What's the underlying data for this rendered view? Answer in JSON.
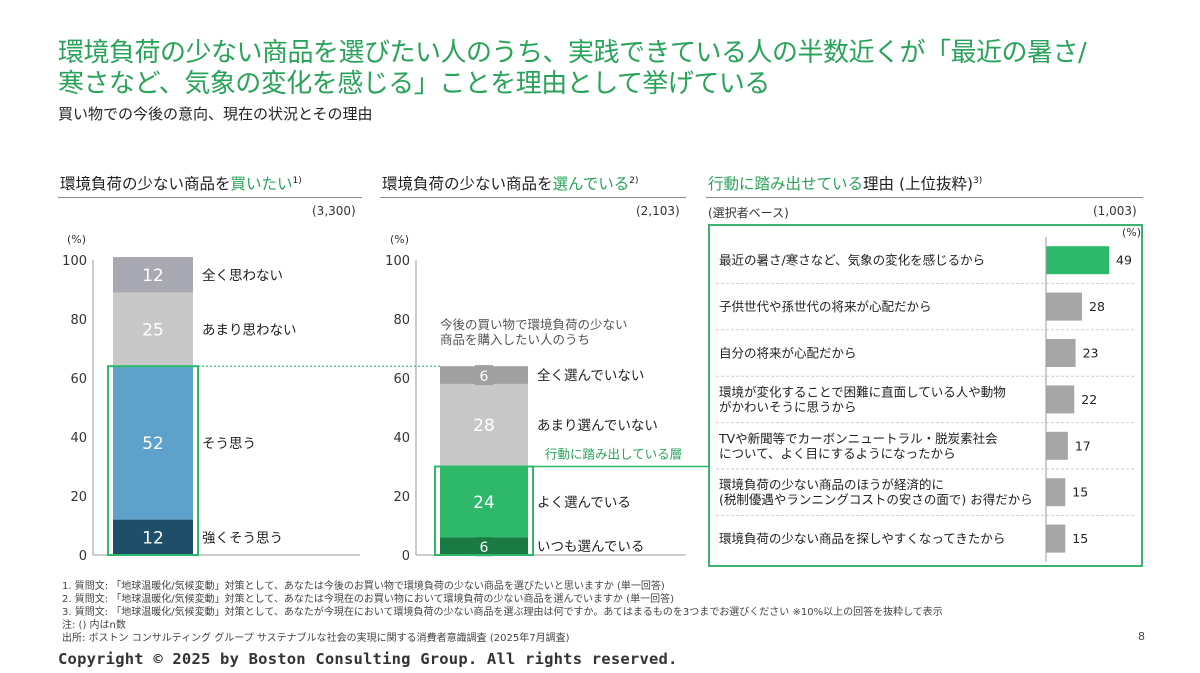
{
  "title_line1": "環境負荷の少ない商品を選びたい人のうち、実践できている人の半数近くが「最近の暑さ/",
  "title_line2": "寒さなど、気象の変化を感じる」ことを理由として挙げている",
  "subtitle": "買い物での今後の意向、現在の状況とその理由",
  "panels": {
    "left": {
      "title_pre": "環境負荷の少ない商品を",
      "title_hl": "買いたい",
      "title_sup": "1)",
      "base": "(3,300)"
    },
    "middle": {
      "title_pre": "環境負荷の少ない商品を",
      "title_hl": "選んでいる",
      "title_sup": "2)",
      "base": "(2,103)"
    },
    "right": {
      "title_hl": "行動に踏み出せている",
      "title_post": "理由 (上位抜粋)",
      "title_sup": "3)",
      "base_label": "(選択者ベース)",
      "base": "(1,003)"
    }
  },
  "annotations": {
    "middle_note": [
      "今後の買い物で環境負荷の少ない",
      "商品を購入したい人のうち"
    ],
    "action_layer": "行動に踏み出している層",
    "percent_unit": "(%)"
  },
  "chart_data": [
    {
      "type": "bar",
      "stacked": true,
      "ylabel": "(%)",
      "ylim": [
        0,
        100
      ],
      "yticks": [
        0,
        20,
        40,
        60,
        80,
        100
      ],
      "segments": [
        {
          "name": "強くそう思う",
          "value": 12,
          "color": "#1f4e6b"
        },
        {
          "name": "そう思う",
          "value": 52,
          "color": "#5ea2cc"
        },
        {
          "name": "あまり思わない",
          "value": 25,
          "color": "#c8c8c8"
        },
        {
          "name": "全く思わない",
          "value": 12,
          "color": "#a9a9b3"
        }
      ]
    },
    {
      "type": "bar",
      "stacked": true,
      "ylabel": "(%)",
      "ylim": [
        0,
        100
      ],
      "yticks": [
        0,
        20,
        40,
        60,
        80,
        100
      ],
      "segments": [
        {
          "name": "いつも選んでいる",
          "value": 6,
          "color": "#1a7a43"
        },
        {
          "name": "よく選んでいる",
          "value": 24,
          "color": "#2db86a"
        },
        {
          "name": "あまり選んでいない",
          "value": 28,
          "color": "#c8c8c8"
        },
        {
          "name": "全く選んでいない",
          "value": 6,
          "color": "#a0a0a0"
        }
      ]
    },
    {
      "type": "bar",
      "orientation": "horizontal",
      "unit": "(%)",
      "xlim": [
        0,
        100
      ],
      "categories": [
        [
          "最近の暑さ/寒さなど、気象の変化を感じるから"
        ],
        [
          "子供世代や孫世代の将来が心配だから"
        ],
        [
          "自分の将来が心配だから"
        ],
        [
          "環境が変化することで困難に直面している人や動物",
          "がかわいそうに思うから"
        ],
        [
          "TVや新聞等でカーボンニュートラル・脱炭素社会",
          "について、よく目にするようになったから"
        ],
        [
          "環境負荷の少ない商品のほうが経済的に",
          "(税制優遇やランニングコストの安さの面で) お得だから"
        ],
        [
          "環境負荷の少ない商品を探しやすくなってきたから"
        ]
      ],
      "values": [
        49,
        28,
        23,
        22,
        17,
        15,
        15
      ],
      "colors": {
        "highlight": "#2db86a",
        "default": "#a6a6a6"
      }
    }
  ],
  "footnotes": [
    "1. 質問文: 「地球温暖化/気候変動」対策として、あなたは今後のお買い物で環境負荷の少ない商品を選びたいと思いますか (単一回答)",
    "2. 質問文: 「地球温暖化/気候変動」対策として、あなたは今現在のお買い物において環境負荷の少ない商品を選んでいますか (単一回答)",
    "3. 質問文: 「地球温暖化/気候変動」対策として、あなたが今現在において環境負荷の少ない商品を選ぶ理由は何ですか。あてはまるものを3つまでお選びください ※10%以上の回答を抜粋して表示",
    "注: () 内はn数",
    "出所: ボストン コンサルティング グループ サステナブルな社会の実現に関する消費者意識調査 (2025年7月調査)"
  ],
  "copyright": "Copyright © 2025 by Boston Consulting Group. All rights reserved.",
  "page_number": "8"
}
